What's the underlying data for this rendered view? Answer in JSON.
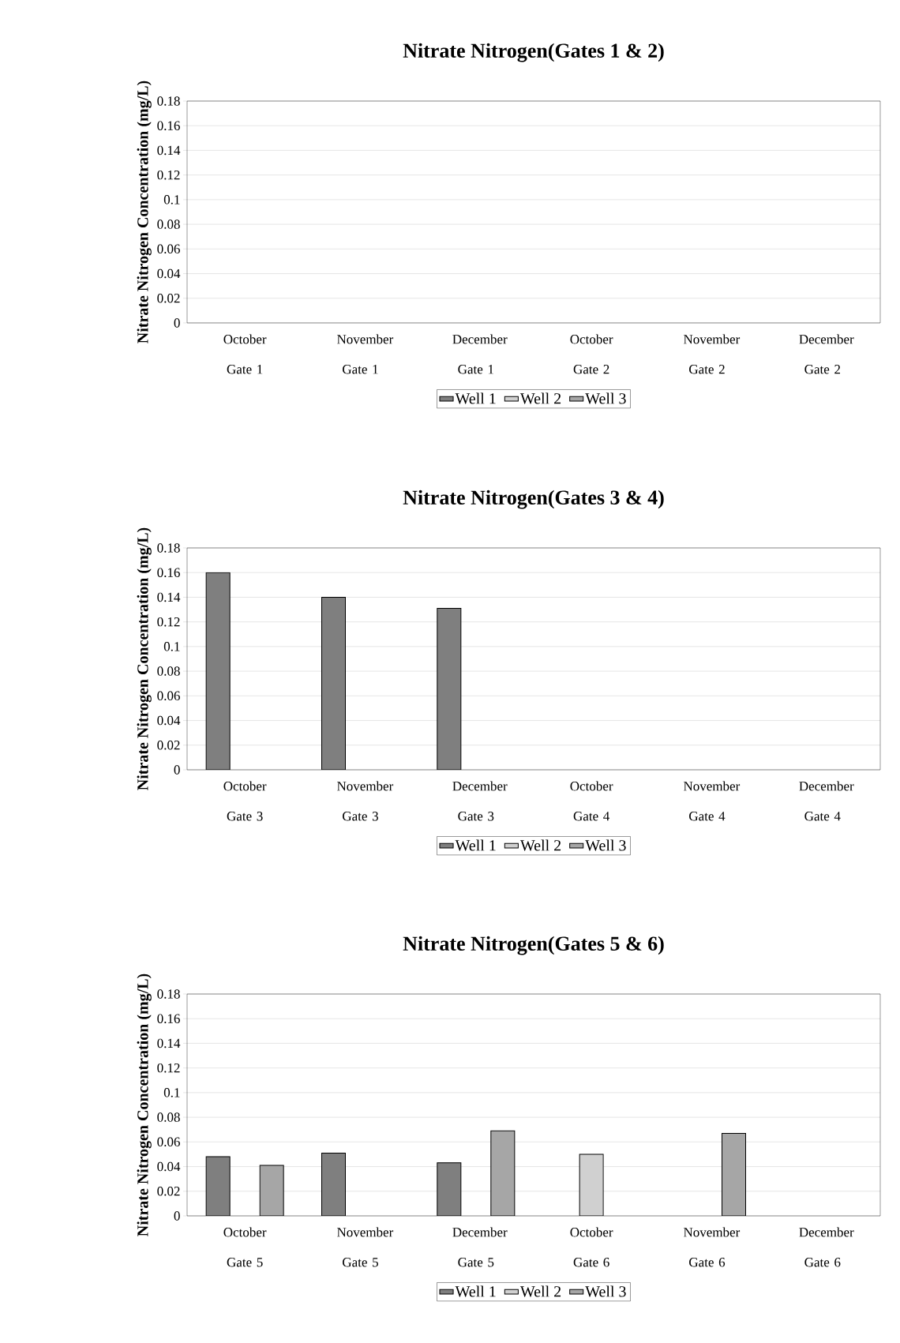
{
  "chart_data": [
    {
      "type": "bar",
      "title": "Nitrate Nitrogen(Gates 1 & 2)",
      "ylabel": "Nitrate Nitrogen Concentration (mg/L)",
      "categories": [
        "October Gate 1",
        "November Gate 1",
        "December Gate 1",
        "October Gate 2",
        "November Gate 2",
        "December Gate 2"
      ],
      "series": [
        {
          "name": "Well 1",
          "color": "#7f7f7f",
          "values": [
            null,
            null,
            null,
            null,
            null,
            null
          ]
        },
        {
          "name": "Well 2",
          "color": "#d0d0d0",
          "values": [
            null,
            null,
            null,
            null,
            null,
            null
          ]
        },
        {
          "name": "Well 3",
          "color": "#a6a6a6",
          "values": [
            null,
            null,
            null,
            null,
            null,
            null
          ]
        }
      ],
      "ylim": [
        0,
        0.18
      ],
      "yticks": [
        0,
        0.02,
        0.04,
        0.06,
        0.08,
        0.1,
        0.12,
        0.14,
        0.16,
        0.18
      ],
      "grid": "y",
      "legend": "bottom"
    },
    {
      "type": "bar",
      "title": "Nitrate Nitrogen(Gates 3 & 4)",
      "ylabel": "Nitrate Nitrogen Concentration (mg/L)",
      "categories": [
        "October Gate 3",
        "November Gate 3",
        "December Gate 3",
        "October Gate 4",
        "November Gate 4",
        "December Gate 4"
      ],
      "series": [
        {
          "name": "Well 1",
          "color": "#7f7f7f",
          "values": [
            0.16,
            0.14,
            0.131,
            null,
            null,
            null
          ]
        },
        {
          "name": "Well 2",
          "color": "#d0d0d0",
          "values": [
            null,
            null,
            null,
            null,
            null,
            null
          ]
        },
        {
          "name": "Well 3",
          "color": "#a6a6a6",
          "values": [
            null,
            null,
            null,
            null,
            null,
            null
          ]
        }
      ],
      "ylim": [
        0,
        0.18
      ],
      "yticks": [
        0,
        0.02,
        0.04,
        0.06,
        0.08,
        0.1,
        0.12,
        0.14,
        0.16,
        0.18
      ],
      "grid": "y",
      "legend": "bottom"
    },
    {
      "type": "bar",
      "title": "Nitrate Nitrogen(Gates 5 & 6)",
      "ylabel": "Nitrate Nitrogen Concentration (mg/L)",
      "categories": [
        "October Gate 5",
        "November Gate 5",
        "December Gate 5",
        "October Gate 6",
        "November Gate 6",
        "December Gate 6"
      ],
      "series": [
        {
          "name": "Well 1",
          "color": "#7f7f7f",
          "values": [
            0.048,
            0.051,
            0.043,
            null,
            null,
            null
          ]
        },
        {
          "name": "Well 2",
          "color": "#d0d0d0",
          "values": [
            null,
            null,
            null,
            0.05,
            null,
            null
          ]
        },
        {
          "name": "Well 3",
          "color": "#a6a6a6",
          "values": [
            0.041,
            null,
            0.069,
            null,
            0.067,
            null
          ]
        }
      ],
      "ylim": [
        0,
        0.18
      ],
      "yticks": [
        0,
        0.02,
        0.04,
        0.06,
        0.08,
        0.1,
        0.12,
        0.14,
        0.16,
        0.18
      ],
      "grid": "y",
      "legend": "bottom"
    }
  ]
}
